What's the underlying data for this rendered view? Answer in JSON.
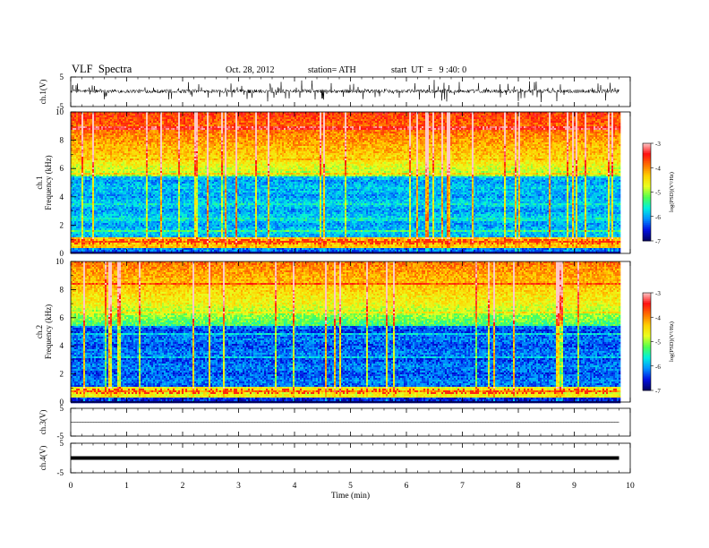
{
  "header": {
    "title": "VLF  Spectra",
    "date": "Oct. 28, 2012",
    "station": "station= ATH",
    "start": "start  UT  =   9 :40: 0"
  },
  "chart_data": [
    {
      "type": "line",
      "panel": "ch1-waveform",
      "ylabel": "ch.1(V)",
      "ylim": [
        -5,
        5
      ],
      "yticks": [
        "5",
        "-5"
      ],
      "xlim": [
        0,
        10
      ],
      "x_extent_min": 9.8,
      "baseline_v": 0.2,
      "spike_amplitude_v": 3.5
    },
    {
      "type": "heatmap",
      "panel": "ch1-spectrogram",
      "channel_label": "ch.1",
      "ylabel": "Frequency  (kHz)",
      "ylim": [
        0,
        10
      ],
      "yticks": [
        "0",
        "2",
        "4",
        "6",
        "8",
        "10"
      ],
      "xlim": [
        0,
        10
      ],
      "x_extent_min": 9.8,
      "colorbar": {
        "label": "log(PSD)(V²/Hz)",
        "range": [
          -7,
          -3
        ],
        "ticks": [
          "-3",
          "-4",
          "-5",
          "-6",
          "-7"
        ]
      }
    },
    {
      "type": "heatmap",
      "panel": "ch2-spectrogram",
      "channel_label": "ch.2",
      "ylabel": "Frequency  (kHz)",
      "ylim": [
        0,
        10
      ],
      "yticks": [
        "0",
        "2",
        "4",
        "6",
        "8",
        "10"
      ],
      "xlim": [
        0,
        10
      ],
      "x_extent_min": 9.8,
      "colorbar": {
        "label": "log(PSD)(V²/Hz)",
        "range": [
          -7,
          -3
        ],
        "ticks": [
          "-3",
          "-4",
          "-5",
          "-6",
          "-7"
        ]
      }
    },
    {
      "type": "line",
      "panel": "ch3-waveform",
      "ylabel": "ch.3(V)",
      "ylim": [
        -5,
        5
      ],
      "yticks": [
        "5",
        "-5"
      ],
      "xlim": [
        0,
        10
      ],
      "x_extent_min": 9.8,
      "baseline_v": 0.0
    },
    {
      "type": "line",
      "panel": "ch4-waveform",
      "ylabel": "ch.4(V)",
      "ylim": [
        -5,
        5
      ],
      "yticks": [
        "5",
        "-5"
      ],
      "xlim": [
        0,
        10
      ],
      "x_extent_min": 9.8,
      "baseline_v": 0.0
    }
  ],
  "xaxis": {
    "label": "Time  (min)",
    "ticks": [
      "0",
      "1",
      "2",
      "3",
      "4",
      "5",
      "6",
      "7",
      "8",
      "9",
      "10"
    ]
  },
  "colormap": [
    "#000060",
    "#0010e0",
    "#0090ff",
    "#00f0e0",
    "#50ff50",
    "#e8ff20",
    "#ffd000",
    "#ff7000",
    "#ff1010",
    "#ffc8c8"
  ]
}
